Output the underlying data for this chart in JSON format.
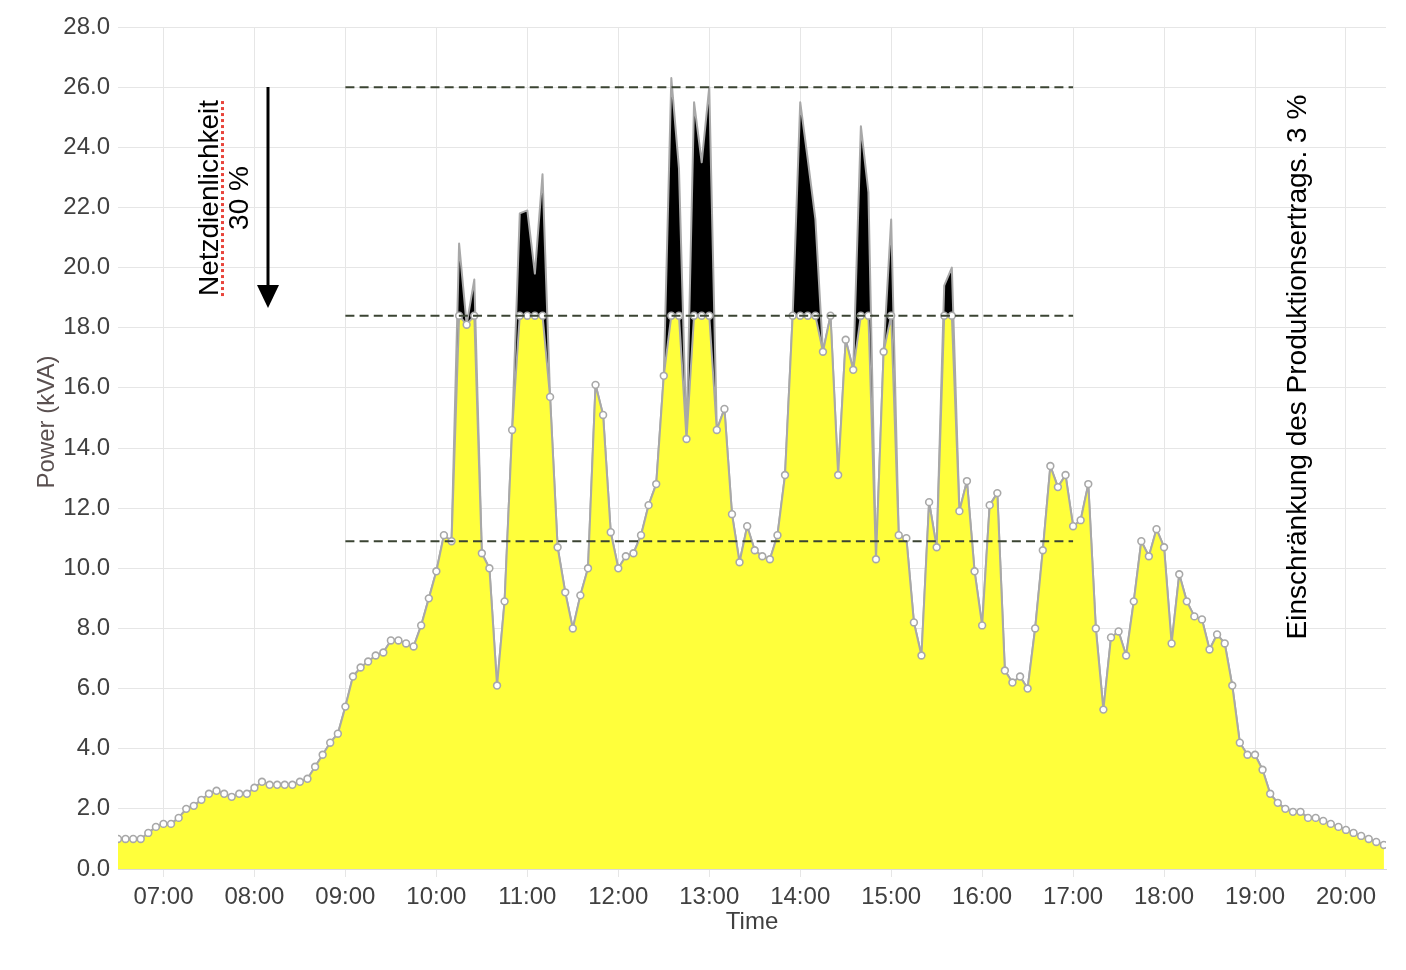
{
  "chart_data": {
    "type": "area",
    "xlabel": "Time",
    "ylabel": "Power (kVA)",
    "x": [
      6.5,
      6.583,
      6.667,
      6.75,
      6.833,
      6.917,
      7,
      7.083,
      7.167,
      7.25,
      7.333,
      7.417,
      7.5,
      7.583,
      7.667,
      7.75,
      7.833,
      7.917,
      8,
      8.083,
      8.167,
      8.25,
      8.333,
      8.417,
      8.5,
      8.583,
      8.667,
      8.75,
      8.833,
      8.917,
      9,
      9.083,
      9.167,
      9.25,
      9.333,
      9.417,
      9.5,
      9.583,
      9.667,
      9.75,
      9.833,
      9.917,
      10,
      10.083,
      10.167,
      10.25,
      10.333,
      10.417,
      10.5,
      10.583,
      10.667,
      10.75,
      10.833,
      10.917,
      11,
      11.083,
      11.167,
      11.25,
      11.333,
      11.417,
      11.5,
      11.583,
      11.667,
      11.75,
      11.833,
      11.917,
      12,
      12.083,
      12.167,
      12.25,
      12.333,
      12.417,
      12.5,
      12.583,
      12.667,
      12.75,
      12.833,
      12.917,
      13,
      13.083,
      13.167,
      13.25,
      13.333,
      13.417,
      13.5,
      13.583,
      13.667,
      13.75,
      13.833,
      13.917,
      14,
      14.083,
      14.167,
      14.25,
      14.333,
      14.417,
      14.5,
      14.583,
      14.667,
      14.75,
      14.833,
      14.917,
      15,
      15.083,
      15.167,
      15.25,
      15.333,
      15.417,
      15.5,
      15.583,
      15.667,
      15.75,
      15.833,
      15.917,
      16,
      16.083,
      16.167,
      16.25,
      16.333,
      16.417,
      16.5,
      16.583,
      16.667,
      16.75,
      16.833,
      16.917,
      17,
      17.083,
      17.167,
      17.25,
      17.333,
      17.417,
      17.5,
      17.583,
      17.667,
      17.75,
      17.833,
      17.917,
      18,
      18.083,
      18.167,
      18.25,
      18.333,
      18.417,
      18.5,
      18.583,
      18.667,
      18.75,
      18.833,
      18.917,
      19,
      19.083,
      19.167,
      19.25,
      19.333,
      19.417,
      19.5,
      19.583,
      19.667,
      19.75,
      19.833,
      19.917,
      20,
      20.083,
      20.167,
      20.25,
      20.333,
      20.417
    ],
    "xlim": [
      6.5,
      20.44
    ],
    "xticks": [
      {
        "value": 7,
        "label": "07:00"
      },
      {
        "value": 8,
        "label": "08:00"
      },
      {
        "value": 9,
        "label": "09:00"
      },
      {
        "value": 10,
        "label": "10:00"
      },
      {
        "value": 11,
        "label": "11:00"
      },
      {
        "value": 12,
        "label": "12:00"
      },
      {
        "value": 13,
        "label": "13:00"
      },
      {
        "value": 14,
        "label": "14:00"
      },
      {
        "value": 15,
        "label": "15:00"
      },
      {
        "value": 16,
        "label": "16:00"
      },
      {
        "value": 17,
        "label": "17:00"
      },
      {
        "value": 18,
        "label": "18:00"
      },
      {
        "value": 19,
        "label": "19:00"
      },
      {
        "value": 20,
        "label": "20:00"
      }
    ],
    "ylim": [
      0,
      28
    ],
    "yticks": [
      {
        "value": 0,
        "label": "0.0"
      },
      {
        "value": 2,
        "label": "2.0"
      },
      {
        "value": 4,
        "label": "4.0"
      },
      {
        "value": 6,
        "label": "6.0"
      },
      {
        "value": 8,
        "label": "8.0"
      },
      {
        "value": 10,
        "label": "10.0"
      },
      {
        "value": 12,
        "label": "12.0"
      },
      {
        "value": 14,
        "label": "14.0"
      },
      {
        "value": 16,
        "label": "16.0"
      },
      {
        "value": 18,
        "label": "18.0"
      },
      {
        "value": 20,
        "label": "20.0"
      },
      {
        "value": 22,
        "label": "22.0"
      },
      {
        "value": 24,
        "label": "24.0"
      },
      {
        "value": 26,
        "label": "26.0"
      },
      {
        "value": 28,
        "label": "28.0"
      }
    ],
    "grid": true,
    "stacked": true,
    "marker": "circle",
    "series": [
      {
        "color": "#ffff3b",
        "values": [
          1.0,
          1.0,
          1.0,
          1.0,
          1.2,
          1.4,
          1.5,
          1.5,
          1.7,
          2.0,
          2.1,
          2.3,
          2.5,
          2.6,
          2.5,
          2.4,
          2.5,
          2.5,
          2.7,
          2.9,
          2.8,
          2.8,
          2.8,
          2.8,
          2.9,
          3.0,
          3.4,
          3.8,
          4.2,
          4.5,
          5.4,
          6.4,
          6.7,
          6.9,
          7.1,
          7.2,
          7.6,
          7.6,
          7.5,
          7.4,
          8.1,
          9.0,
          9.9,
          11.1,
          10.9,
          18.4,
          18.1,
          18.4,
          10.5,
          10.0,
          6.1,
          8.9,
          14.6,
          18.4,
          18.4,
          18.4,
          18.4,
          15.7,
          10.7,
          9.2,
          8.0,
          9.1,
          10.0,
          16.1,
          15.1,
          11.2,
          10.0,
          10.4,
          10.5,
          11.1,
          12.1,
          12.8,
          16.4,
          18.4,
          18.4,
          14.3,
          18.4,
          18.4,
          18.4,
          14.6,
          15.3,
          11.8,
          10.2,
          11.4,
          10.6,
          10.4,
          10.3,
          11.1,
          13.1,
          18.4,
          18.4,
          18.4,
          18.4,
          17.2,
          18.4,
          13.1,
          17.6,
          16.6,
          18.4,
          18.4,
          10.3,
          17.2,
          18.4,
          11.1,
          11.0,
          8.2,
          7.1,
          12.2,
          10.7,
          18.4,
          18.4,
          11.9,
          12.9,
          9.9,
          8.1,
          12.1,
          12.5,
          6.6,
          6.2,
          6.4,
          6.0,
          8.0,
          10.6,
          13.4,
          12.7,
          13.1,
          11.4,
          11.6,
          12.8,
          8.0,
          5.3,
          7.7,
          7.9,
          7.1,
          8.9,
          10.9,
          10.4,
          11.3,
          10.7,
          7.5,
          9.8,
          8.9,
          8.4,
          8.3,
          7.3,
          7.8,
          7.5,
          6.1,
          4.2,
          3.8,
          3.8,
          3.3,
          2.5,
          2.2,
          2.0,
          1.9,
          1.9,
          1.7,
          1.7,
          1.6,
          1.5,
          1.4,
          1.3,
          1.2,
          1.1,
          1.0,
          0.9,
          0.8
        ]
      },
      {
        "color": "#000000",
        "marker": "none",
        "values": [
          0,
          0,
          0,
          0,
          0,
          0,
          0,
          0,
          0,
          0,
          0,
          0,
          0,
          0,
          0,
          0,
          0,
          0,
          0,
          0,
          0,
          0,
          0,
          0,
          0,
          0,
          0,
          0,
          0,
          0,
          0,
          0,
          0,
          0,
          0,
          0,
          0,
          0,
          0,
          0,
          0,
          0,
          0,
          0,
          0,
          2.4,
          0,
          1.2,
          0,
          0,
          0,
          0,
          0,
          3.4,
          3.5,
          1.4,
          4.7,
          0,
          0,
          0,
          0,
          0,
          0,
          0,
          0,
          0,
          0,
          0,
          0,
          0,
          0,
          0,
          0,
          7.9,
          4.9,
          0,
          7.1,
          5.1,
          7.6,
          0,
          0,
          0,
          0,
          0,
          0,
          0,
          0,
          0,
          0,
          0,
          7.1,
          5.2,
          3.2,
          0,
          0,
          0,
          0,
          0,
          6.3,
          4.1,
          0,
          0,
          3.2,
          0,
          0,
          0,
          0,
          0,
          0,
          1.0,
          1.6,
          0,
          0,
          0,
          0,
          0,
          0,
          0,
          0,
          0,
          0,
          0,
          0,
          0,
          0,
          0,
          0,
          0,
          0,
          0,
          0,
          0,
          0,
          0,
          0,
          0,
          0,
          0,
          0,
          0,
          0,
          0,
          0,
          0,
          0,
          0,
          0,
          0,
          0,
          0,
          0,
          0,
          0,
          0,
          0,
          0,
          0,
          0,
          0,
          0,
          0,
          0,
          0,
          0,
          0,
          0,
          0,
          0
        ]
      },
      {
        "type": "line",
        "color": "#3b4433",
        "line_style": "dashed",
        "marker": "none",
        "values": [
          null,
          null,
          null,
          null,
          null,
          null,
          null,
          null,
          null,
          null,
          null,
          null,
          null,
          null,
          null,
          null,
          null,
          null,
          null,
          null,
          null,
          null,
          null,
          null,
          null,
          null,
          null,
          null,
          null,
          null,
          26,
          26,
          26,
          26,
          26,
          26,
          26,
          26,
          26,
          26,
          26,
          26,
          26,
          26,
          26,
          26,
          26,
          26,
          26,
          26,
          26,
          26,
          26,
          26,
          26,
          26,
          26,
          26,
          26,
          26,
          26,
          26,
          26,
          26,
          26,
          26,
          26,
          26,
          26,
          26,
          26,
          26,
          26,
          26,
          26,
          26,
          26,
          26,
          26,
          26,
          26,
          26,
          26,
          26,
          26,
          26,
          26,
          26,
          26,
          26,
          26,
          26,
          26,
          26,
          26,
          26,
          26,
          26,
          26,
          26,
          26,
          26,
          26,
          26,
          26,
          26,
          26,
          26,
          26,
          26,
          26,
          26,
          26,
          26,
          26,
          26,
          26,
          26,
          26,
          26,
          26,
          26,
          26,
          26,
          26,
          26,
          26,
          null,
          null,
          null,
          null,
          null,
          null,
          null,
          null,
          null,
          null,
          null,
          null,
          null,
          null,
          null,
          null,
          null,
          null,
          null,
          null,
          null,
          null,
          null,
          null,
          null,
          null,
          null,
          null,
          null,
          null,
          null,
          null,
          null,
          null,
          null,
          null,
          null,
          null,
          null,
          null,
          null
        ]
      },
      {
        "type": "line",
        "color": "#3b4433",
        "line_style": "dashed",
        "marker": "none",
        "values": [
          null,
          null,
          null,
          null,
          null,
          null,
          null,
          null,
          null,
          null,
          null,
          null,
          null,
          null,
          null,
          null,
          null,
          null,
          null,
          null,
          null,
          null,
          null,
          null,
          null,
          null,
          null,
          null,
          null,
          null,
          18.4,
          18.4,
          18.4,
          18.4,
          18.4,
          18.4,
          18.4,
          18.4,
          18.4,
          18.4,
          18.4,
          18.4,
          18.4,
          18.4,
          18.4,
          18.4,
          18.4,
          18.4,
          18.4,
          18.4,
          18.4,
          18.4,
          18.4,
          18.4,
          18.4,
          18.4,
          18.4,
          18.4,
          18.4,
          18.4,
          18.4,
          18.4,
          18.4,
          18.4,
          18.4,
          18.4,
          18.4,
          18.4,
          18.4,
          18.4,
          18.4,
          18.4,
          18.4,
          18.4,
          18.4,
          18.4,
          18.4,
          18.4,
          18.4,
          18.4,
          18.4,
          18.4,
          18.4,
          18.4,
          18.4,
          18.4,
          18.4,
          18.4,
          18.4,
          18.4,
          18.4,
          18.4,
          18.4,
          18.4,
          18.4,
          18.4,
          18.4,
          18.4,
          18.4,
          18.4,
          18.4,
          18.4,
          18.4,
          18.4,
          18.4,
          18.4,
          18.4,
          18.4,
          18.4,
          18.4,
          18.4,
          18.4,
          18.4,
          18.4,
          18.4,
          18.4,
          18.4,
          18.4,
          18.4,
          18.4,
          18.4,
          18.4,
          18.4,
          18.4,
          18.4,
          18.4,
          18.4,
          null,
          null,
          null,
          null,
          null,
          null,
          null,
          null,
          null,
          null,
          null,
          null,
          null,
          null,
          null,
          null,
          null,
          null,
          null,
          null,
          null,
          null,
          null,
          null,
          null,
          null,
          null,
          null,
          null,
          null,
          null,
          null,
          null,
          null,
          null,
          null,
          null,
          null,
          null,
          null,
          null
        ]
      },
      {
        "type": "line",
        "color": "#3b4433",
        "line_style": "dashed",
        "marker": "none",
        "values": [
          null,
          null,
          null,
          null,
          null,
          null,
          null,
          null,
          null,
          null,
          null,
          null,
          null,
          null,
          null,
          null,
          null,
          null,
          null,
          null,
          null,
          null,
          null,
          null,
          null,
          null,
          null,
          null,
          null,
          null,
          10.9,
          10.9,
          10.9,
          10.9,
          10.9,
          10.9,
          10.9,
          10.9,
          10.9,
          10.9,
          10.9,
          10.9,
          10.9,
          10.9,
          10.9,
          10.9,
          10.9,
          10.9,
          10.9,
          10.9,
          10.9,
          10.9,
          10.9,
          10.9,
          10.9,
          10.9,
          10.9,
          10.9,
          10.9,
          10.9,
          10.9,
          10.9,
          10.9,
          10.9,
          10.9,
          10.9,
          10.9,
          10.9,
          10.9,
          10.9,
          10.9,
          10.9,
          10.9,
          10.9,
          10.9,
          10.9,
          10.9,
          10.9,
          10.9,
          10.9,
          10.9,
          10.9,
          10.9,
          10.9,
          10.9,
          10.9,
          10.9,
          10.9,
          10.9,
          10.9,
          10.9,
          10.9,
          10.9,
          10.9,
          10.9,
          10.9,
          10.9,
          10.9,
          10.9,
          10.9,
          10.9,
          10.9,
          10.9,
          10.9,
          10.9,
          10.9,
          10.9,
          10.9,
          10.9,
          10.9,
          10.9,
          10.9,
          10.9,
          10.9,
          10.9,
          10.9,
          10.9,
          10.9,
          10.9,
          10.9,
          10.9,
          10.9,
          10.9,
          10.9,
          10.9,
          10.9,
          10.9,
          null,
          null,
          null,
          null,
          null,
          null,
          null,
          null,
          null,
          null,
          null,
          null,
          null,
          null,
          null,
          null,
          null,
          null,
          null,
          null,
          null,
          null,
          null,
          null,
          null,
          null,
          null,
          null,
          null,
          null,
          null,
          null,
          null,
          null,
          null,
          null,
          null,
          null,
          null,
          null,
          null
        ]
      }
    ],
    "annotations": [
      "Netzdienlichkeit\n30 %",
      "Einschränkung des Produktionsertrags. 3 %"
    ]
  }
}
